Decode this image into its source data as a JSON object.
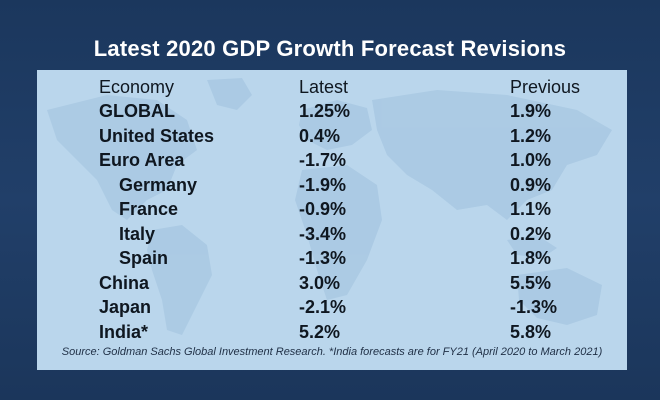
{
  "title": "Latest 2020 GDP Growth Forecast Revisions",
  "chart_data": {
    "type": "table",
    "title": "Latest 2020 GDP Growth Forecast Revisions",
    "columns": [
      "Economy",
      "Latest",
      "Previous"
    ],
    "rows": [
      {
        "economy": "GLOBAL",
        "latest": "1.25%",
        "previous": "1.9%",
        "indent": false
      },
      {
        "economy": "United States",
        "latest": "0.4%",
        "previous": "1.2%",
        "indent": false
      },
      {
        "economy": "Euro Area",
        "latest": "-1.7%",
        "previous": "1.0%",
        "indent": false
      },
      {
        "economy": "Germany",
        "latest": "-1.9%",
        "previous": "0.9%",
        "indent": true
      },
      {
        "economy": "France",
        "latest": "-0.9%",
        "previous": "1.1%",
        "indent": true
      },
      {
        "economy": "Italy",
        "latest": "-3.4%",
        "previous": "0.2%",
        "indent": true
      },
      {
        "economy": "Spain",
        "latest": "-1.3%",
        "previous": "1.8%",
        "indent": true
      },
      {
        "economy": "China",
        "latest": "3.0%",
        "previous": "5.5%",
        "indent": false
      },
      {
        "economy": "Japan",
        "latest": "-2.1%",
        "previous": "-1.3%",
        "indent": false
      },
      {
        "economy": "India*",
        "latest": "5.2%",
        "previous": "5.8%",
        "indent": false
      }
    ],
    "source": "Source: Goldman Sachs Global Investment Research. *India forecasts are for FY21 (April 2020 to March 2021)"
  },
  "colors": {
    "frame": "#1f3c64",
    "panel": "#bad6ec",
    "map": "#a6c7e2",
    "text": "#0f1720",
    "title": "#ffffff"
  }
}
